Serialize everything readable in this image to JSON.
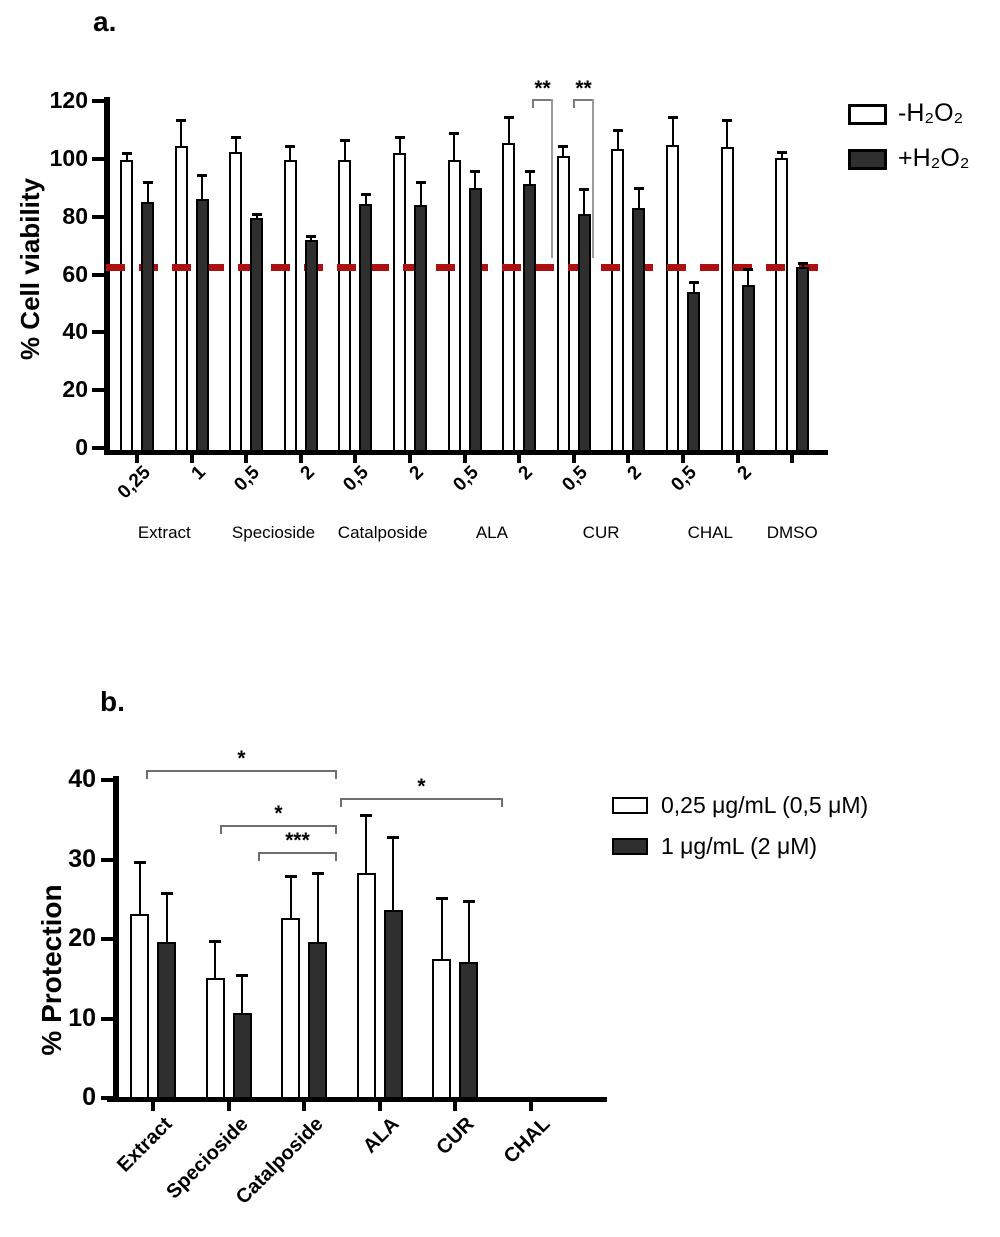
{
  "figure": {
    "background": "#ffffff"
  },
  "panel_a": {
    "label": "a."
  },
  "panel_b": {
    "label": "b."
  },
  "chart_data": [
    {
      "type": "bar",
      "panel": "a",
      "title": "",
      "xlabel": "",
      "ylabel": "% Cell viability",
      "ylim": [
        0,
        120
      ],
      "yticks": [
        0,
        20,
        40,
        60,
        80,
        100,
        120
      ],
      "grid": false,
      "legend_position": "top-right",
      "reference_line": {
        "value": 62,
        "style": "dashed",
        "color": "#ad1010"
      },
      "tick_labels": [
        "0,25",
        "1",
        "0,5",
        "2",
        "0,5",
        "2",
        "0,5",
        "2",
        "0,5",
        "2",
        "0,5",
        "2",
        ""
      ],
      "groups": [
        {
          "name": "Extract",
          "pairs": [
            0,
            1
          ]
        },
        {
          "name": "Specioside",
          "pairs": [
            2,
            3
          ]
        },
        {
          "name": "Catalposide",
          "pairs": [
            4,
            5
          ]
        },
        {
          "name": "ALA",
          "pairs": [
            6,
            7
          ]
        },
        {
          "name": "CUR",
          "pairs": [
            8,
            9
          ]
        },
        {
          "name": "CHAL",
          "pairs": [
            10,
            11
          ]
        },
        {
          "name": "DMSO",
          "pairs": [
            12,
            12
          ]
        }
      ],
      "categories": [
        "Extract 0,25",
        "Extract 1",
        "Specioside 0,5",
        "Specioside 2",
        "Catalposide 0,5",
        "Catalposide 2",
        "ALA 0,5",
        "ALA 2",
        "CUR 0,5",
        "CUR 2",
        "CHAL 0,5",
        "CHAL 2",
        "DMSO"
      ],
      "series": [
        {
          "name": "-H₂O₂",
          "fill": "#ffffff",
          "values": [
            99.5,
            104.5,
            102.5,
            99.5,
            99.5,
            102,
            99.5,
            105.5,
            101,
            103.5,
            105,
            104,
            100.5
          ],
          "errors": [
            2.5,
            9,
            5,
            5,
            7,
            5.5,
            9.5,
            9,
            3.5,
            6.5,
            9.5,
            9.5,
            2
          ]
        },
        {
          "name": "+H₂O₂",
          "fill": "#2f2f2f",
          "values": [
            85,
            86,
            79.5,
            72,
            84.5,
            84,
            90,
            91.5,
            81,
            83,
            54,
            56.5,
            62.5
          ],
          "errors": [
            7,
            8.5,
            1.5,
            1.5,
            3.5,
            8,
            6,
            4.5,
            8.5,
            7,
            3.5,
            5.5,
            1.5
          ]
        }
      ],
      "significance": [
        {
          "label": "**",
          "bar": "ALA 2 +H₂O₂",
          "vs": "reference-line"
        },
        {
          "label": "**",
          "bar": "CUR 0,5 +H₂O₂",
          "vs": "reference-line"
        }
      ]
    },
    {
      "type": "bar",
      "panel": "b",
      "title": "",
      "xlabel": "",
      "ylabel": "% Protection",
      "ylim": [
        0,
        40
      ],
      "yticks": [
        0,
        10,
        20,
        30,
        40
      ],
      "grid": false,
      "legend_position": "top-right",
      "categories": [
        "Extract",
        "Specioside",
        "Catalposide",
        "ALA",
        "CUR",
        "CHAL"
      ],
      "series": [
        {
          "name": "0,25 μg/mL (0,5 μM)",
          "fill": "#ffffff",
          "values": [
            23.2,
            15.1,
            22.6,
            28.3,
            17.5,
            0
          ],
          "errors": [
            6.5,
            4.7,
            5.3,
            7.3,
            7.7,
            0
          ]
        },
        {
          "name": "1 μg/mL (2 μM)",
          "fill": "#2f2f2f",
          "values": [
            19.6,
            10.7,
            19.6,
            23.7,
            17.1,
            0
          ],
          "errors": [
            6.2,
            4.8,
            8.7,
            9.1,
            7.7,
            0
          ]
        }
      ],
      "significance": [
        {
          "label": "*",
          "from": "Extract 0,25 μg/mL",
          "to": "Catalposide 1 μg/mL"
        },
        {
          "label": "*",
          "from": "Catalposide 1 μg/mL",
          "to": "CUR 1 μg/mL"
        },
        {
          "label": "*",
          "from": "Specioside 0,25 μg/mL",
          "to": "Catalposide 1 μg/mL"
        },
        {
          "label": "***",
          "from": "Specioside 1 μg/mL",
          "to": "Catalposide 1 μg/mL"
        }
      ]
    }
  ]
}
